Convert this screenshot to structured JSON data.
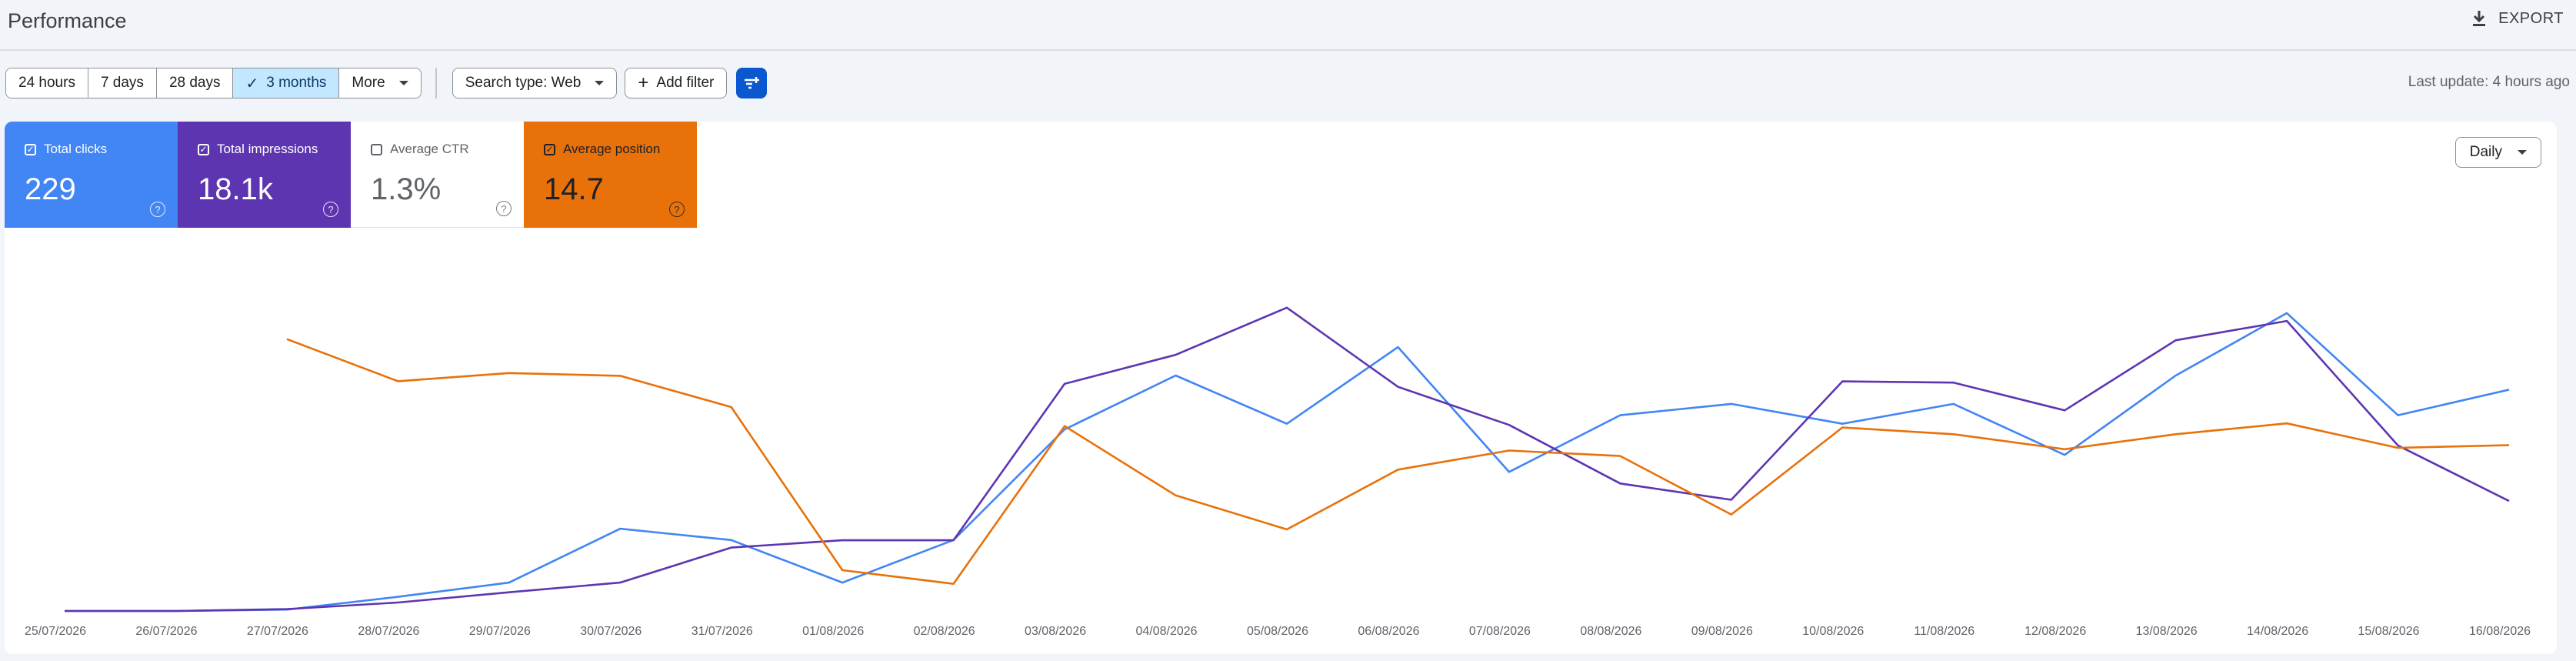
{
  "header": {
    "title": "Performance",
    "export_label": "EXPORT"
  },
  "toolbar": {
    "ranges": [
      {
        "label": "24 hours",
        "active": false
      },
      {
        "label": "7 days",
        "active": false
      },
      {
        "label": "28 days",
        "active": false
      },
      {
        "label": "3 months",
        "active": true
      },
      {
        "label": "More",
        "active": false
      }
    ],
    "search_type": "Search type: Web",
    "add_filter": "Add filter",
    "last_update": "Last update: 4 hours ago"
  },
  "metrics": [
    {
      "label": "Total clicks",
      "value": "229",
      "checked": true,
      "color": "#4285f4"
    },
    {
      "label": "Total impressions",
      "value": "18.1k",
      "checked": true,
      "color": "#5e35b1"
    },
    {
      "label": "Average CTR",
      "value": "1.3%",
      "checked": false,
      "color": "#ffffff"
    },
    {
      "label": "Average position",
      "value": "14.7",
      "checked": true,
      "color": "#e8710a"
    }
  ],
  "granularity": "Daily",
  "chart_data": {
    "type": "line",
    "categories": [
      "25/07/2026",
      "26/07/2026",
      "27/07/2026",
      "28/07/2026",
      "29/07/2026",
      "30/07/2026",
      "31/07/2026",
      "01/08/2026",
      "02/08/2026",
      "03/08/2026",
      "04/08/2026",
      "05/08/2026",
      "06/08/2026",
      "07/08/2026",
      "08/08/2026",
      "09/08/2026",
      "10/08/2026",
      "11/08/2026",
      "12/08/2026",
      "13/08/2026",
      "14/08/2026",
      "15/08/2026",
      "16/08/2026"
    ],
    "series": [
      {
        "name": "Total clicks",
        "color": "#4285f4",
        "values": [
          0,
          0,
          0.5,
          5,
          10,
          29,
          25,
          10,
          25,
          64,
          83,
          66,
          93,
          49,
          69,
          73,
          66,
          73,
          55,
          83,
          105,
          69,
          78
        ]
      },
      {
        "name": "Total impressions",
        "color": "#5e35b1",
        "values": [
          0,
          0,
          30,
          140,
          310,
          470,
          1050,
          1170,
          1170,
          3760,
          4240,
          5020,
          3710,
          3080,
          2110,
          1840,
          3800,
          3780,
          3320,
          4480,
          4800,
          2740,
          1820
        ]
      },
      {
        "name": "Average position",
        "color": "#e8710a",
        "values": [
          null,
          null,
          14.0,
          17.1,
          16.5,
          16.7,
          19.0,
          31.0,
          32.0,
          20.4,
          25.5,
          28.0,
          23.6,
          22.2,
          22.6,
          26.9,
          20.5,
          21.0,
          22.1,
          21.0,
          20.2,
          22.0,
          21.8
        ]
      }
    ]
  }
}
